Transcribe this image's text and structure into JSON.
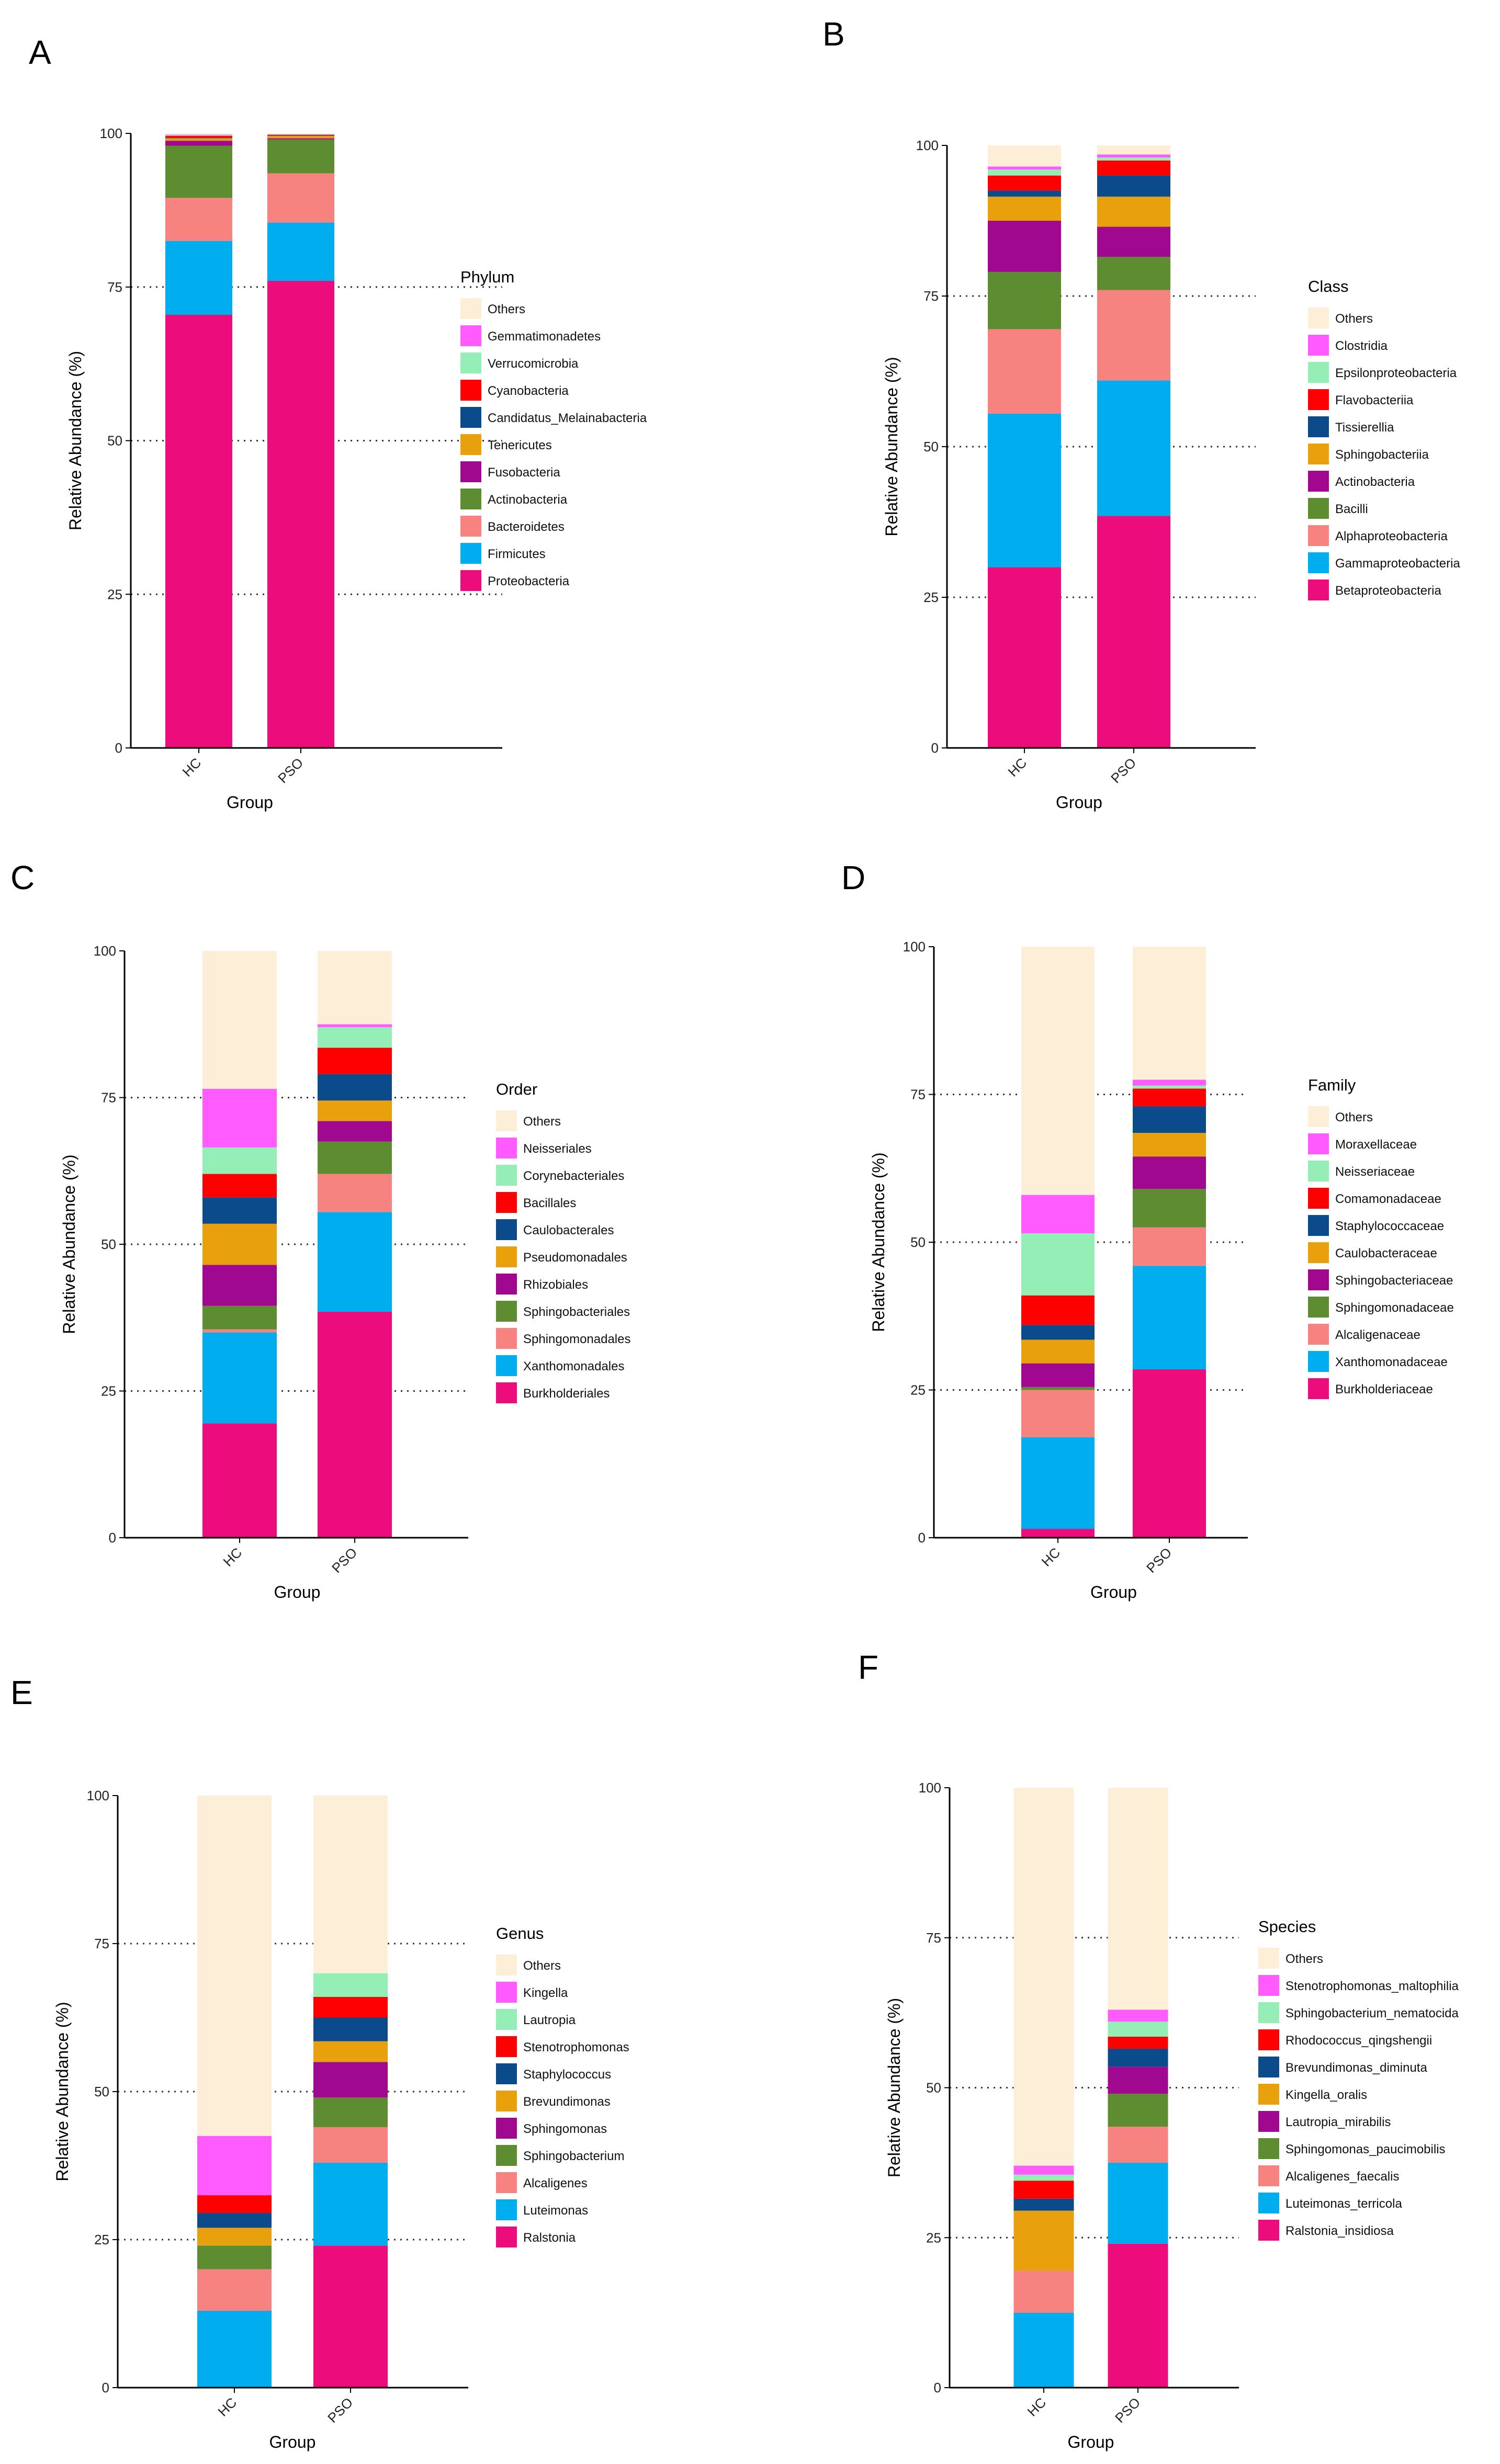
{
  "chart_data": [
    {
      "panel": "A",
      "type": "bar",
      "stacked": true,
      "title": "",
      "xlabel": "Group",
      "ylabel": "Relative Abundance (%)",
      "ylim": [
        0,
        100
      ],
      "yticks": [
        0,
        25,
        50,
        75,
        100
      ],
      "grid": "dotted at 25, 50, 75",
      "legend_title": "Phylum",
      "legend_position": "right",
      "categories": [
        "HC",
        "PSO"
      ],
      "series": [
        {
          "name": "Proteobacteria",
          "color": "#EC0C7B",
          "values": [
            70.5,
            76.0
          ]
        },
        {
          "name": "Firmicutes",
          "color": "#00ADEF",
          "values": [
            12.0,
            9.5
          ]
        },
        {
          "name": "Bacteroidetes",
          "color": "#F6837F",
          "values": [
            7.0,
            8.0
          ]
        },
        {
          "name": "Actinobacteria",
          "color": "#5E8C31",
          "values": [
            8.5,
            5.5
          ]
        },
        {
          "name": "Fusobacteria",
          "color": "#A0098F",
          "values": [
            0.8,
            0.2
          ]
        },
        {
          "name": "Tenericutes",
          "color": "#E8A10C",
          "values": [
            0.4,
            0.4
          ]
        },
        {
          "name": "Candidatus_Melainabacteria",
          "color": "#0B4A8B",
          "values": [
            0.1,
            0.1
          ]
        },
        {
          "name": "Cyanobacteria",
          "color": "#FF0000",
          "values": [
            0.3,
            0.1
          ]
        },
        {
          "name": "Verrucomicrobia",
          "color": "#96EEB7",
          "values": [
            0.1,
            0.0
          ]
        },
        {
          "name": "Gemmatimonadetes",
          "color": "#FF5BFF",
          "values": [
            0.1,
            0.0
          ]
        },
        {
          "name": "Others",
          "color": "#FDEFD7",
          "values": [
            0.2,
            0.2
          ]
        }
      ]
    },
    {
      "panel": "B",
      "type": "bar",
      "stacked": true,
      "title": "",
      "xlabel": "Group",
      "ylabel": "Relative Abundance (%)",
      "ylim": [
        0,
        100
      ],
      "yticks": [
        0,
        25,
        50,
        75,
        100
      ],
      "grid": "dotted at 25, 50, 75",
      "legend_title": "Class",
      "legend_position": "right",
      "categories": [
        "HC",
        "PSO"
      ],
      "series": [
        {
          "name": "Betaproteobacteria",
          "color": "#EC0C7B",
          "values": [
            30.0,
            38.5
          ]
        },
        {
          "name": "Gammaproteobacteria",
          "color": "#00ADEF",
          "values": [
            25.5,
            22.5
          ]
        },
        {
          "name": "Alphaproteobacteria",
          "color": "#F6837F",
          "values": [
            14.0,
            15.0
          ]
        },
        {
          "name": "Bacilli",
          "color": "#5E8C31",
          "values": [
            9.5,
            5.5
          ]
        },
        {
          "name": "Actinobacteria",
          "color": "#A0098F",
          "values": [
            8.5,
            5.0
          ]
        },
        {
          "name": "Sphingobacteriia",
          "color": "#E8A10C",
          "values": [
            4.0,
            5.0
          ]
        },
        {
          "name": "Tissierellia",
          "color": "#0B4A8B",
          "values": [
            1.0,
            3.5
          ]
        },
        {
          "name": "Flavobacteriia",
          "color": "#FF0000",
          "values": [
            2.5,
            2.5
          ]
        },
        {
          "name": "Epsilonproteobacteria",
          "color": "#96EEB7",
          "values": [
            1.0,
            0.5
          ]
        },
        {
          "name": "Clostridia",
          "color": "#FF5BFF",
          "values": [
            0.5,
            0.5
          ]
        },
        {
          "name": "Others",
          "color": "#FDEFD7",
          "values": [
            3.5,
            1.5
          ]
        }
      ]
    },
    {
      "panel": "C",
      "type": "bar",
      "stacked": true,
      "title": "",
      "xlabel": "Group",
      "ylabel": "Relative Abundance (%)",
      "ylim": [
        0,
        100
      ],
      "yticks": [
        0,
        25,
        50,
        75,
        100
      ],
      "grid": "dotted at 25, 50, 75",
      "legend_title": "Order",
      "legend_position": "right",
      "categories": [
        "HC",
        "PSO"
      ],
      "series": [
        {
          "name": "Burkholderiales",
          "color": "#EC0C7B",
          "values": [
            19.5,
            38.5
          ]
        },
        {
          "name": "Xanthomonadales",
          "color": "#00ADEF",
          "values": [
            15.5,
            17.0
          ]
        },
        {
          "name": "Sphingomonadales",
          "color": "#F6837F",
          "values": [
            0.5,
            6.5
          ]
        },
        {
          "name": "Sphingobacteriales",
          "color": "#5E8C31",
          "values": [
            4.0,
            5.5
          ]
        },
        {
          "name": "Rhizobiales",
          "color": "#A0098F",
          "values": [
            7.0,
            3.5
          ]
        },
        {
          "name": "Pseudomonadales",
          "color": "#E8A10C",
          "values": [
            7.0,
            3.5
          ]
        },
        {
          "name": "Caulobacterales",
          "color": "#0B4A8B",
          "values": [
            4.5,
            4.5
          ]
        },
        {
          "name": "Bacillales",
          "color": "#FF0000",
          "values": [
            4.0,
            4.5
          ]
        },
        {
          "name": "Corynebacteriales",
          "color": "#96EEB7",
          "values": [
            4.5,
            3.5
          ]
        },
        {
          "name": "Neisseriales",
          "color": "#FF5BFF",
          "values": [
            10.0,
            0.5
          ]
        },
        {
          "name": "Others",
          "color": "#FDEFD7",
          "values": [
            23.5,
            12.5
          ]
        }
      ]
    },
    {
      "panel": "D",
      "type": "bar",
      "stacked": true,
      "title": "",
      "xlabel": "Group",
      "ylabel": "Relative Abundance (%)",
      "ylim": [
        0,
        100
      ],
      "yticks": [
        0,
        25,
        50,
        75,
        100
      ],
      "grid": "dotted at 25, 50, 75",
      "legend_title": "Family",
      "legend_position": "right",
      "categories": [
        "HC",
        "PSO"
      ],
      "series": [
        {
          "name": "Burkholderiaceae",
          "color": "#EC0C7B",
          "values": [
            1.5,
            28.5
          ]
        },
        {
          "name": "Xanthomonadaceae",
          "color": "#00ADEF",
          "values": [
            15.5,
            17.5
          ]
        },
        {
          "name": "Alcaligenaceae",
          "color": "#F6837F",
          "values": [
            8.0,
            6.5
          ]
        },
        {
          "name": "Sphingomonadaceae",
          "color": "#5E8C31",
          "values": [
            0.5,
            6.5
          ]
        },
        {
          "name": "Sphingobacteriaceae",
          "color": "#A0098F",
          "values": [
            4.0,
            5.5
          ]
        },
        {
          "name": "Caulobacteraceae",
          "color": "#E8A10C",
          "values": [
            4.0,
            4.0
          ]
        },
        {
          "name": "Staphylococcaceae",
          "color": "#0B4A8B",
          "values": [
            2.5,
            4.5
          ]
        },
        {
          "name": "Comamonadaceae",
          "color": "#FF0000",
          "values": [
            5.0,
            3.0
          ]
        },
        {
          "name": "Neisseriaceae",
          "color": "#96EEB7",
          "values": [
            10.5,
            0.5
          ]
        },
        {
          "name": "Moraxellaceae",
          "color": "#FF5BFF",
          "values": [
            6.5,
            1.0
          ]
        },
        {
          "name": "Others",
          "color": "#FDEFD7",
          "values": [
            42.0,
            22.5
          ]
        }
      ]
    },
    {
      "panel": "E",
      "type": "bar",
      "stacked": true,
      "title": "",
      "xlabel": "Group",
      "ylabel": "Relative Abundance (%)",
      "ylim": [
        0,
        100
      ],
      "yticks": [
        0,
        25,
        50,
        75,
        100
      ],
      "grid": "dotted at 25, 50, 75",
      "legend_title": "Genus",
      "legend_position": "right",
      "categories": [
        "HC",
        "PSO"
      ],
      "series": [
        {
          "name": "Ralstonia",
          "color": "#EC0C7B",
          "values": [
            0.0,
            24.0
          ]
        },
        {
          "name": "Luteimonas",
          "color": "#00ADEF",
          "values": [
            13.0,
            14.0
          ]
        },
        {
          "name": "Alcaligenes",
          "color": "#F6837F",
          "values": [
            7.0,
            6.0
          ]
        },
        {
          "name": "Sphingobacterium",
          "color": "#5E8C31",
          "values": [
            4.0,
            5.0
          ]
        },
        {
          "name": "Sphingomonas",
          "color": "#A0098F",
          "values": [
            0.0,
            6.0
          ]
        },
        {
          "name": "Brevundimonas",
          "color": "#E8A10C",
          "values": [
            3.0,
            3.5
          ]
        },
        {
          "name": "Staphylococcus",
          "color": "#0B4A8B",
          "values": [
            2.5,
            4.0
          ]
        },
        {
          "name": "Stenotrophomonas",
          "color": "#FF0000",
          "values": [
            3.0,
            3.5
          ]
        },
        {
          "name": "Lautropia",
          "color": "#96EEB7",
          "values": [
            0.0,
            4.0
          ]
        },
        {
          "name": "Kingella",
          "color": "#FF5BFF",
          "values": [
            10.0,
            0.0
          ]
        },
        {
          "name": "Others",
          "color": "#FDEFD7",
          "values": [
            57.5,
            30.0
          ]
        }
      ]
    },
    {
      "panel": "F",
      "type": "bar",
      "stacked": true,
      "title": "",
      "xlabel": "Group",
      "ylabel": "Relative Abundance (%)",
      "ylim": [
        0,
        100
      ],
      "yticks": [
        0,
        25,
        50,
        75,
        100
      ],
      "grid": "dotted at 25, 50, 75",
      "legend_title": "Species",
      "legend_position": "right",
      "categories": [
        "HC",
        "PSO"
      ],
      "series": [
        {
          "name": "Ralstonia_insidiosa",
          "color": "#EC0C7B",
          "values": [
            0.0,
            24.0
          ]
        },
        {
          "name": "Luteimonas_terricola",
          "color": "#00ADEF",
          "values": [
            12.5,
            13.5
          ]
        },
        {
          "name": "Alcaligenes_faecalis",
          "color": "#F6837F",
          "values": [
            7.0,
            6.0
          ]
        },
        {
          "name": "Sphingomonas_paucimobilis",
          "color": "#5E8C31",
          "values": [
            0.0,
            5.5
          ]
        },
        {
          "name": "Lautropia_mirabilis",
          "color": "#A0098F",
          "values": [
            0.0,
            4.5
          ]
        },
        {
          "name": "Kingella_oralis",
          "color": "#E8A10C",
          "values": [
            10.0,
            0.0
          ]
        },
        {
          "name": "Brevundimonas_diminuta",
          "color": "#0B4A8B",
          "values": [
            2.0,
            3.0
          ]
        },
        {
          "name": "Rhodococcus_qingshengii",
          "color": "#FF0000",
          "values": [
            3.0,
            2.0
          ]
        },
        {
          "name": "Sphingobacterium_nematocida",
          "color": "#96EEB7",
          "values": [
            1.0,
            2.5
          ]
        },
        {
          "name": "Stenotrophomonas_maltophilia",
          "color": "#FF5BFF",
          "values": [
            1.5,
            2.0
          ]
        },
        {
          "name": "Others",
          "color": "#FDEFD7",
          "values": [
            63.0,
            37.0
          ]
        }
      ]
    }
  ]
}
